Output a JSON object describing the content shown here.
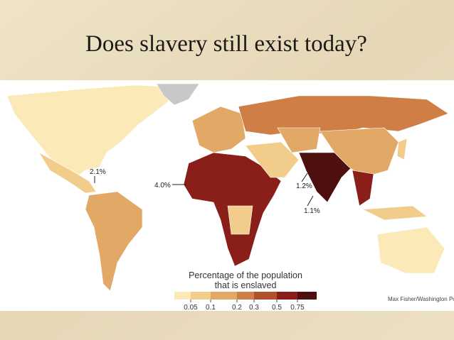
{
  "title": "Does slavery still exist today?",
  "map": {
    "callouts": [
      "2.1%",
      "4.0%",
      "1.2%",
      "1.1%"
    ],
    "legend": {
      "title": [
        "Percentage of the population",
        "that is enslaved"
      ],
      "ticks": [
        0.05,
        0.1,
        0.2,
        0.3,
        0.5,
        0.75
      ],
      "colors": [
        "#fbe9b8",
        "#f2cc8a",
        "#e2a866",
        "#cf7e45",
        "#b1502c",
        "#8a1f1a",
        "#4e0f0f"
      ]
    },
    "credit": "Max Fisher/Washington Po"
  }
}
